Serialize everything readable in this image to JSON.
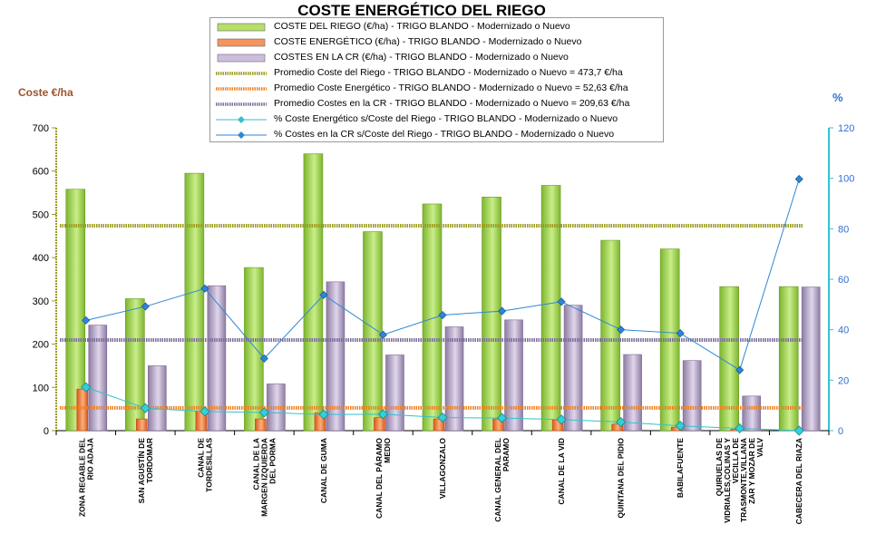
{
  "chart_data": {
    "type": "bar",
    "title": "COSTE ENERGÉTICO DEL RIEGO",
    "ylabel": "Coste €/ha",
    "y2label": "%",
    "ylim": [
      0,
      700
    ],
    "y2lim": [
      0,
      120
    ],
    "yticks": [
      "0",
      "100",
      "200",
      "300",
      "400",
      "500",
      "600",
      "700"
    ],
    "y2ticks": [
      "0",
      "20",
      "40",
      "60",
      "80",
      "100",
      "120"
    ],
    "categories": [
      "ZONA REGABLE DEL RIO ADAJA",
      "SAN AGUSTÍN DE TORDOMAR",
      "CANAL DE TORDESILLAS",
      "CANAL DE LA MARGEN IZQUIERDA DEL PORMA",
      "CANAL DE GUMA",
      "CANAL DEL PÁRAMO MEDIO",
      "VILLAGONZALO",
      "CANAL GENERAL DEL PARAMO",
      "CANAL DE LA VID",
      "QUINTANA DEL PIDIO",
      "BABILAFUENTE",
      "QUIRUELAS DE VIDRIALES,COLINAS Y VECILLA DE TRASMONTE,VILLANAZAR Y MOZAR DE VALV",
      "CABECERA DEL RIAZA"
    ],
    "series": [
      {
        "name": "COSTE DEL RIEGO (€/ha) - TRIGO BLANDO - Modernizado o Nuevo",
        "kind": "bar",
        "axis": "left",
        "color": "#9bd14a",
        "values": [
          558,
          305,
          595,
          377,
          640,
          460,
          524,
          540,
          567,
          440,
          420,
          333,
          333
        ]
      },
      {
        "name": "COSTE ENERGÉTICO (€/ha) - TRIGO BLANDO - Modernizado o Nuevo",
        "kind": "bar",
        "axis": "left",
        "color": "#f07c3e",
        "values": [
          96,
          27,
          45,
          27,
          41,
          30,
          27,
          27,
          25,
          15,
          8,
          3,
          0
        ]
      },
      {
        "name": "COSTES EN LA CR (€/ha) - TRIGO BLANDO - Modernizado o Nuevo",
        "kind": "bar",
        "axis": "left",
        "color": "#b8a8c8",
        "values": [
          244,
          150,
          335,
          108,
          344,
          175,
          240,
          256,
          290,
          176,
          162,
          80,
          332
        ]
      },
      {
        "name": "Promedio Coste del Riego - TRIGO BLANDO - Modernizado o Nuevo = 473,7 €/ha",
        "kind": "hline",
        "axis": "left",
        "color": "#9a9a1c",
        "value": 473.7
      },
      {
        "name": "Promedio Coste Energético - TRIGO BLANDO - Modernizado o Nuevo = 52,63 €/ha",
        "kind": "hline",
        "axis": "left",
        "color": "#f08020",
        "value": 52.63
      },
      {
        "name": "Promedio Costes en la CR - TRIGO BLANDO - Modernizado o Nuevo = 209,63 €/ha",
        "kind": "hline",
        "axis": "left",
        "color": "#7a6e9a",
        "value": 209.63
      },
      {
        "name": "% Coste Energético s/Coste del Riego - TRIGO BLANDO - Modernizado o Nuevo",
        "kind": "line",
        "axis": "right",
        "color": "#33c2cc",
        "values": [
          17.2,
          8.9,
          7.6,
          7.2,
          6.4,
          6.5,
          5.2,
          5.0,
          4.4,
          3.4,
          1.9,
          0.9,
          0
        ]
      },
      {
        "name": "% Costes en la CR s/Coste del Riego - TRIGO BLANDO - Modernizado o Nuevo",
        "kind": "line",
        "axis": "right",
        "color": "#2f86d6",
        "values": [
          43.7,
          49.2,
          56.3,
          28.6,
          53.8,
          38.0,
          45.8,
          47.4,
          51.1,
          40.0,
          38.6,
          24.0,
          99.7
        ]
      }
    ],
    "legend_position": "top"
  }
}
